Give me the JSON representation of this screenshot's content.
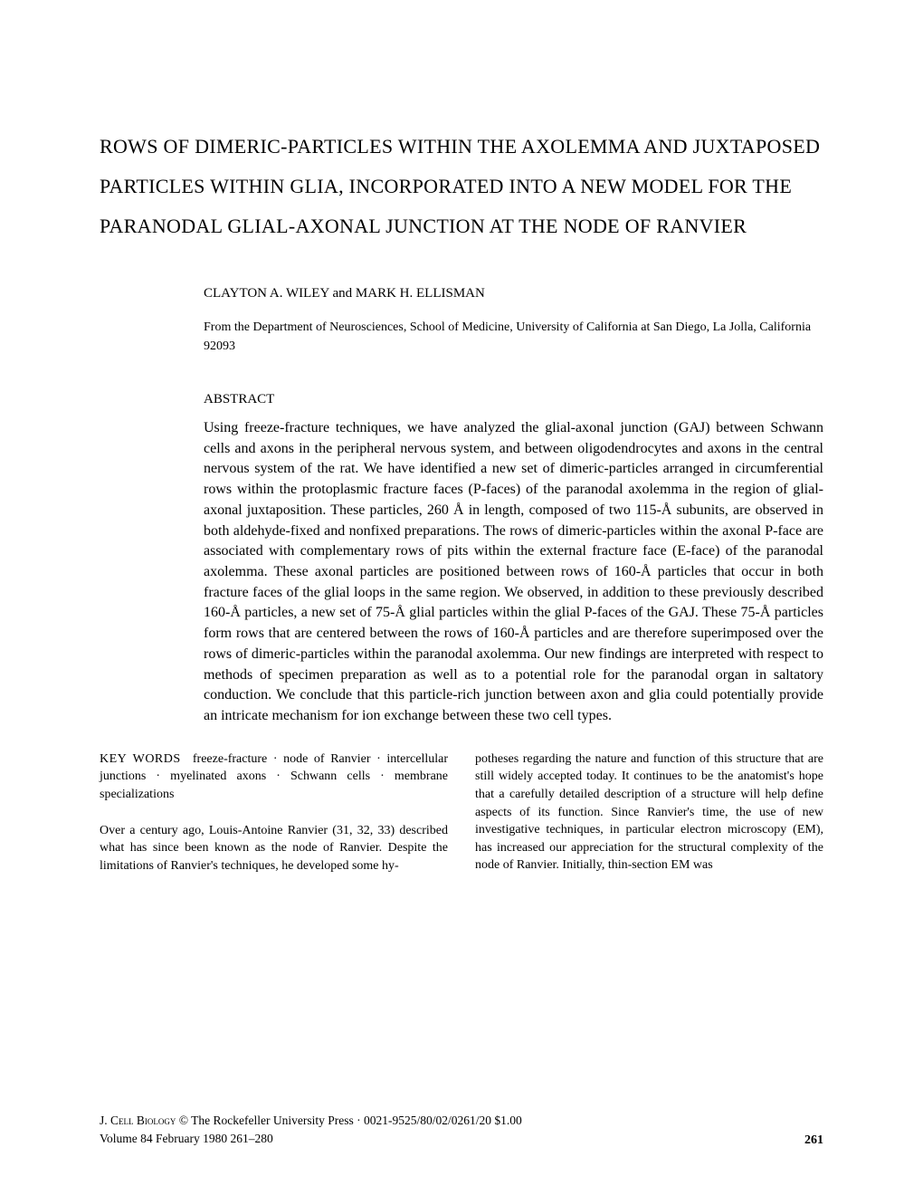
{
  "title": "ROWS OF DIMERIC-PARTICLES WITHIN THE AXOLEMMA AND JUXTAPOSED PARTICLES WITHIN GLIA, INCORPORATED INTO A NEW MODEL FOR THE PARANODAL GLIAL-AXONAL JUNCTION AT THE NODE OF RANVIER",
  "authors": "CLAYTON A. WILEY and MARK H. ELLISMAN",
  "affiliation": "From the Department of Neurosciences, School of Medicine, University of California at San Diego, La Jolla, California 92093",
  "abstract_heading": "ABSTRACT",
  "abstract_body": "Using freeze-fracture techniques, we have analyzed the glial-axonal junction (GAJ) between Schwann cells and axons in the peripheral nervous system, and between oligodendrocytes and axons in the central nervous system of the rat. We have identified a new set of dimeric-particles arranged in circumferential rows within the protoplasmic fracture faces (P-faces) of the paranodal axolemma in the region of glial-axonal juxtaposition. These particles, 260 Å in length, composed of two 115-Å subunits, are observed in both aldehyde-fixed and nonfixed preparations. The rows of dimeric-particles within the axonal P-face are associated with complementary rows of pits within the external fracture face (E-face) of the paranodal axolemma. These axonal particles are positioned between rows of 160-Å particles that occur in both fracture faces of the glial loops in the same region. We observed, in addition to these previously described 160-Å particles, a new set of 75-Å glial particles within the glial P-faces of the GAJ. These 75-Å particles form rows that are centered between the rows of 160-Å particles and are therefore superimposed over the rows of dimeric-particles within the paranodal axolemma. Our new findings are interpreted with respect to methods of specimen preparation as well as to a potential role for the paranodal organ in saltatory conduction. We conclude that this particle-rich junction between axon and glia could potentially provide an intricate mechanism for ion exchange between these two cell types.",
  "keywords_label": "KEY WORDS",
  "keywords": "freeze-fracture · node of Ranvier · intercellular junctions · myelinated axons · Schwann cells · membrane specializations",
  "col1_para": "Over a century ago, Louis-Antoine Ranvier (31, 32, 33) described what has since been known as the node of Ranvier. Despite the limitations of Ranvier's techniques, he developed some hy-",
  "col2_para": "potheses regarding the nature and function of this structure that are still widely accepted today. It continues to be the anatomist's hope that a carefully detailed description of a structure will help define aspects of its function. Since Ranvier's time, the use of new investigative techniques, in particular electron microscopy (EM), has increased our appreciation for the structural complexity of the node of Ranvier. Initially, thin-section EM was",
  "footer": {
    "journal_sc": "J. Cell Biology",
    "copyright": " © The Rockefeller University Press · 0021-9525/80/02/0261/20 $1.00",
    "volume_line": "Volume 84   February 1980   261–280",
    "page_number": "261"
  }
}
